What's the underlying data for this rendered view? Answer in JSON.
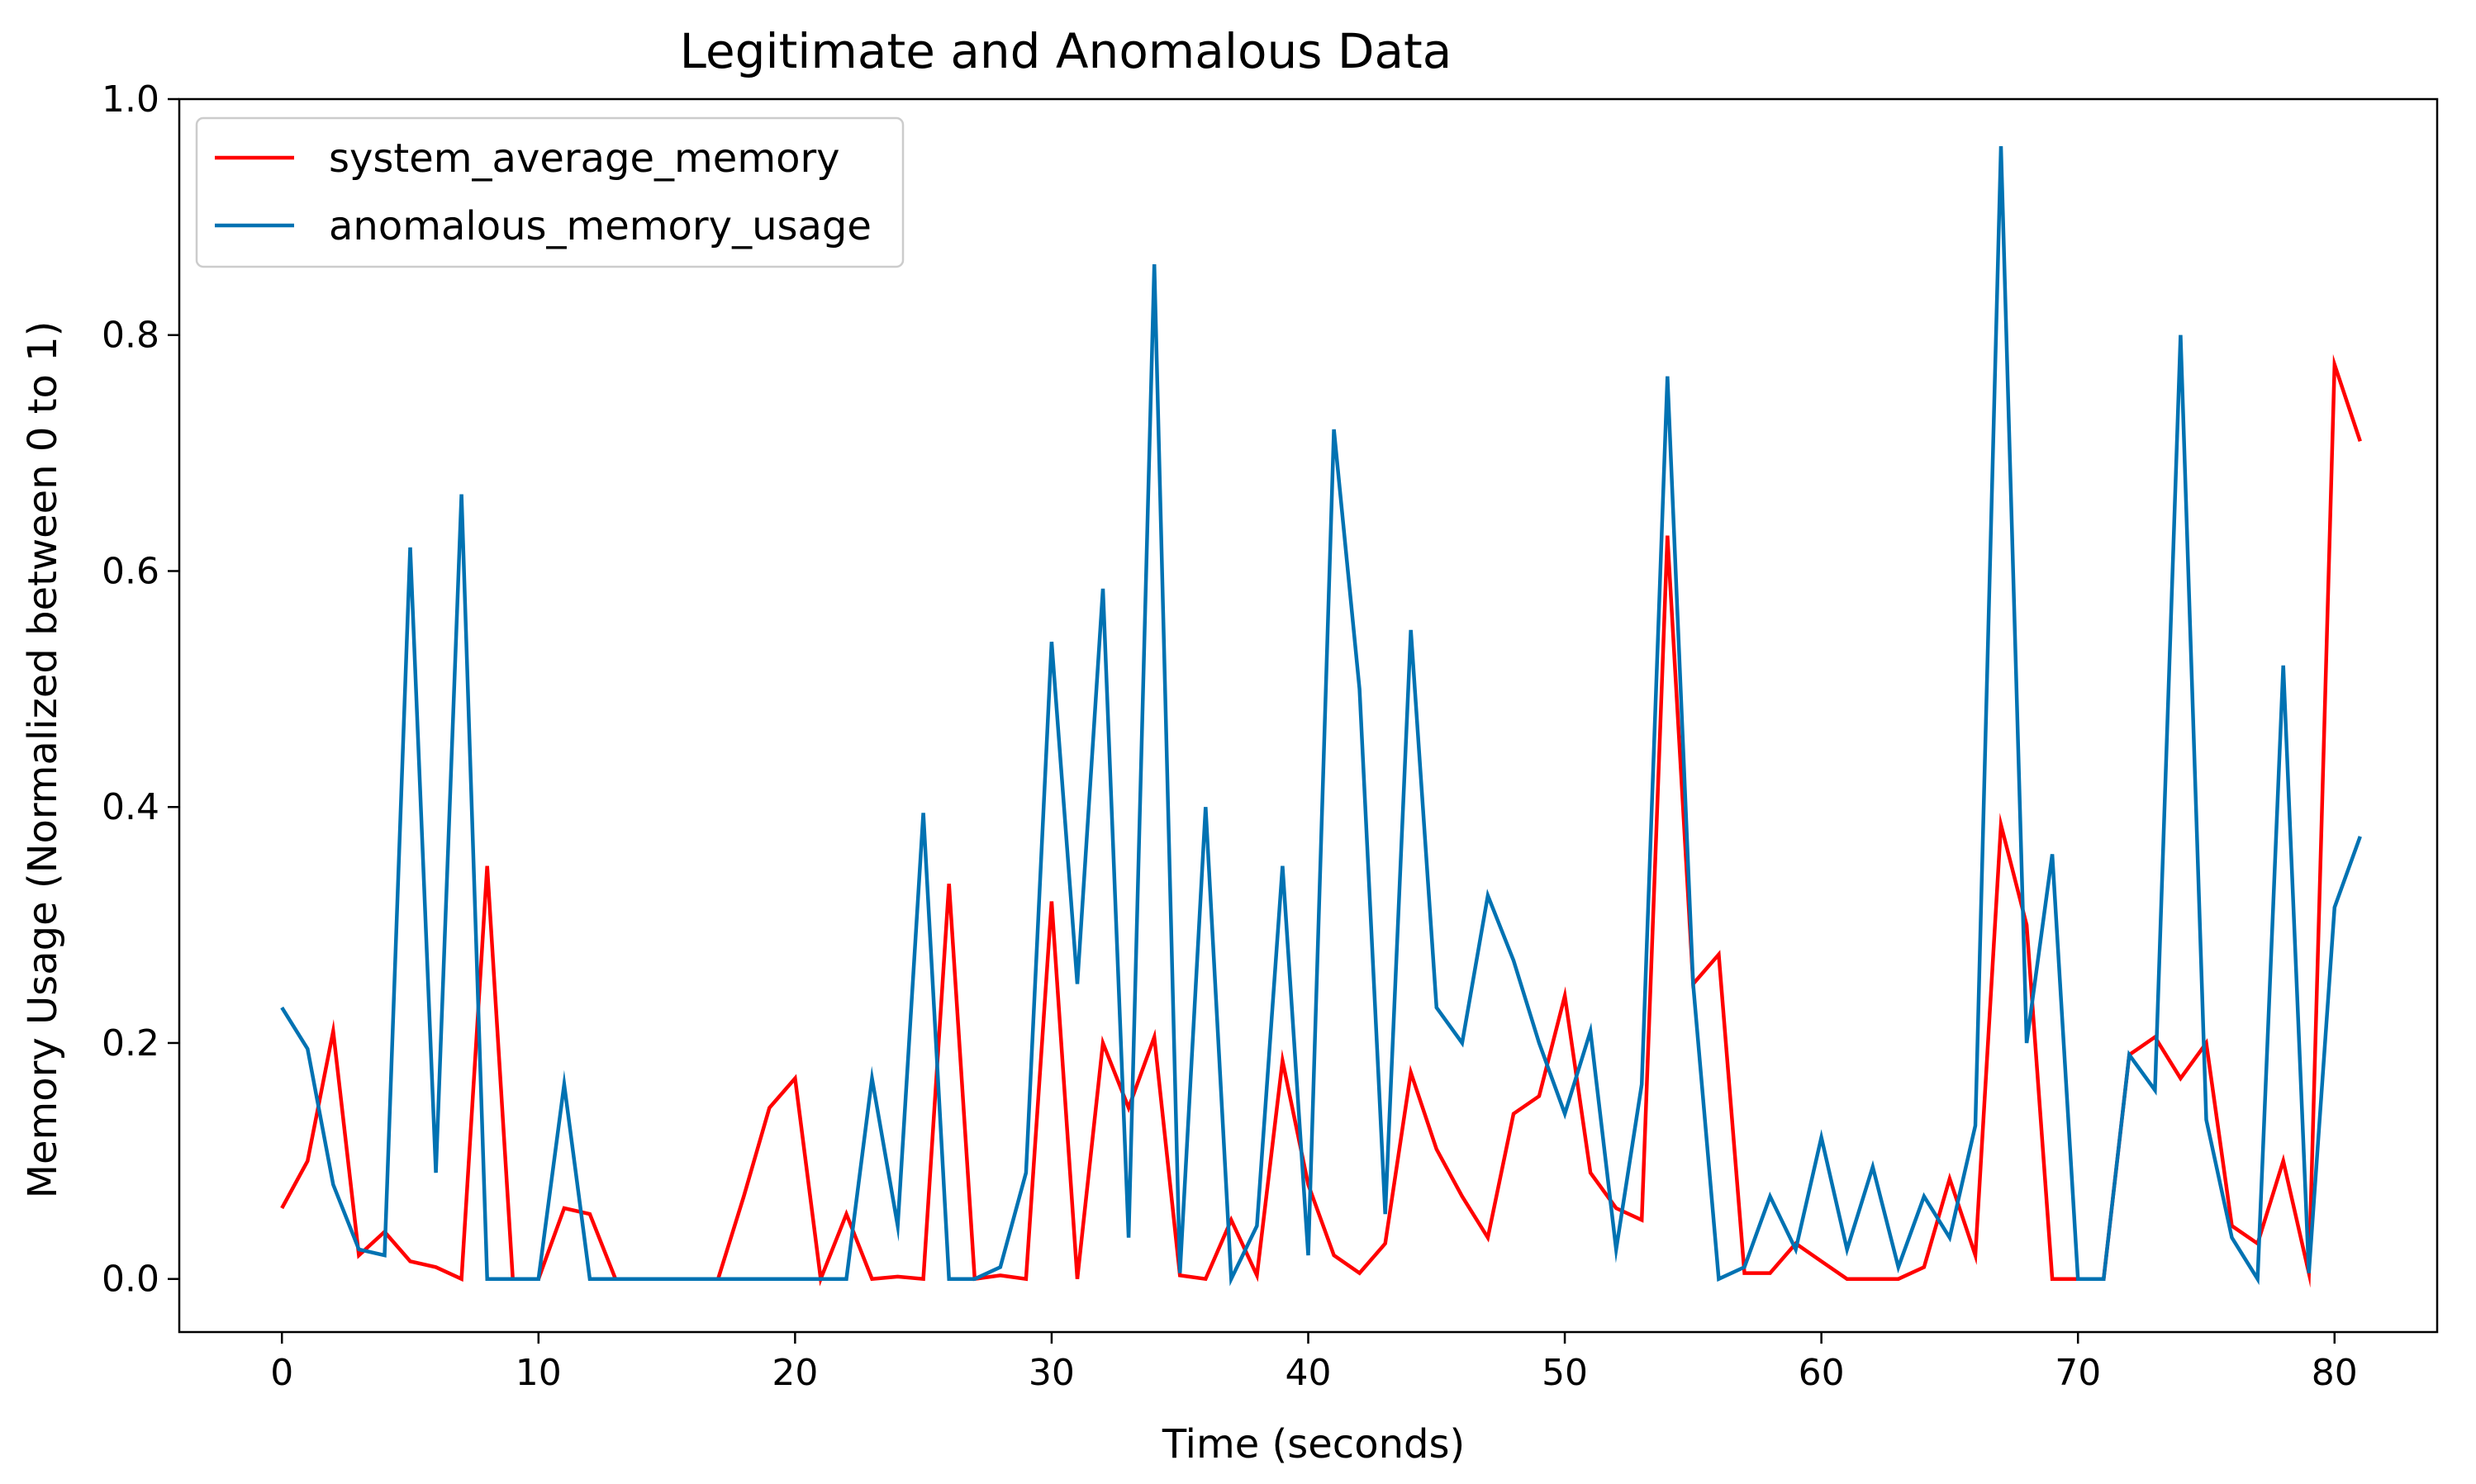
{
  "chart_data": {
    "type": "line",
    "title": "Legitimate and Anomalous Data",
    "xlabel": "Time (seconds)",
    "ylabel": "Memory Usage (Normalized between 0 to 1)",
    "xlim": [
      -4,
      84
    ],
    "ylim": [
      -0.045,
      1.0
    ],
    "xticks": [
      "0",
      "10",
      "20",
      "30",
      "40",
      "50",
      "60",
      "70",
      "80"
    ],
    "yticks": [
      "0.0",
      "0.2",
      "0.4",
      "0.6",
      "0.8",
      "1.0"
    ],
    "grid": false,
    "legend_position": "top-left",
    "x": [
      0,
      1,
      2,
      3,
      4,
      5,
      6,
      7,
      8,
      9,
      10,
      11,
      12,
      13,
      14,
      15,
      16,
      17,
      18,
      19,
      20,
      21,
      22,
      23,
      24,
      25,
      26,
      27,
      28,
      29,
      30,
      31,
      32,
      33,
      34,
      35,
      36,
      37,
      38,
      39,
      40,
      41,
      42,
      43,
      44,
      45,
      46,
      47,
      48,
      49,
      50,
      51,
      52,
      53,
      54,
      55,
      56,
      57,
      58,
      59,
      60,
      61,
      62,
      63,
      64,
      65,
      66,
      67,
      68,
      69,
      70,
      71,
      72,
      73,
      74,
      75,
      76,
      77,
      78,
      79,
      80,
      81
    ],
    "series": [
      {
        "name": "system_average_memory",
        "color": "#ff0000",
        "values": [
          0.06,
          0.1,
          0.21,
          0.02,
          0.04,
          0.015,
          0.01,
          0.0,
          0.35,
          0.0,
          0.0,
          0.06,
          0.055,
          0.0,
          0.0,
          0.0,
          0.0,
          0.0,
          0.07,
          0.145,
          0.17,
          0.0,
          0.055,
          0.0,
          0.002,
          0.0,
          0.335,
          0.0,
          0.003,
          0.0,
          0.32,
          0.0,
          0.2,
          0.145,
          0.205,
          0.003,
          0.0,
          0.05,
          0.003,
          0.185,
          0.08,
          0.02,
          0.005,
          0.03,
          0.175,
          0.11,
          0.07,
          0.035,
          0.14,
          0.155,
          0.24,
          0.09,
          0.06,
          0.05,
          0.63,
          0.25,
          0.275,
          0.005,
          0.005,
          0.03,
          0.015,
          0.0,
          0.0,
          0.0,
          0.01,
          0.085,
          0.02,
          0.385,
          0.3,
          0.0,
          0.0,
          0.0,
          0.19,
          0.205,
          0.17,
          0.2,
          0.045,
          0.03,
          0.1,
          0.005,
          0.775,
          0.71
        ]
      },
      {
        "name": "anomalous_memory_usage",
        "color": "#0072b2",
        "values": [
          0.23,
          0.195,
          0.08,
          0.025,
          0.02,
          0.62,
          0.09,
          0.665,
          0.0,
          0.0,
          0.0,
          0.165,
          0.0,
          0.0,
          0.0,
          0.0,
          0.0,
          0.0,
          0.0,
          0.0,
          0.0,
          0.0,
          0.0,
          0.17,
          0.045,
          0.395,
          0.0,
          0.0,
          0.01,
          0.09,
          0.54,
          0.25,
          0.585,
          0.035,
          0.86,
          0.005,
          0.4,
          0.0,
          0.045,
          0.35,
          0.02,
          0.72,
          0.5,
          0.055,
          0.55,
          0.23,
          0.2,
          0.325,
          0.27,
          0.2,
          0.14,
          0.21,
          0.025,
          0.165,
          0.765,
          0.25,
          0.0,
          0.01,
          0.07,
          0.025,
          0.12,
          0.025,
          0.095,
          0.01,
          0.07,
          0.035,
          0.13,
          0.96,
          0.2,
          0.36,
          0.0,
          0.0,
          0.19,
          0.16,
          0.8,
          0.135,
          0.035,
          0.0,
          0.52,
          0.005,
          0.315,
          0.375
        ]
      }
    ]
  }
}
